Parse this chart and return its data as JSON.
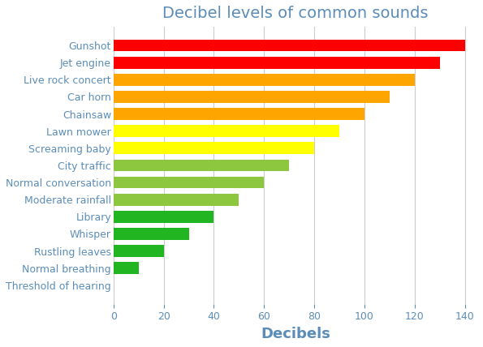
{
  "title": "Decibel levels of common sounds",
  "xlabel": "Decibels",
  "categories": [
    "Threshold of hearing",
    "Normal breathing",
    "Rustling leaves",
    "Whisper",
    "Library",
    "Moderate rainfall",
    "Normal conversation",
    "City traffic",
    "Screaming baby",
    "Lawn mower",
    "Chainsaw",
    "Car horn",
    "Live rock concert",
    "Jet engine",
    "Gunshot"
  ],
  "values": [
    0,
    10,
    20,
    30,
    40,
    50,
    60,
    70,
    80,
    90,
    100,
    110,
    120,
    130,
    140
  ],
  "colors": [
    "#22b522",
    "#22b522",
    "#22b522",
    "#22b522",
    "#22b522",
    "#8dc63f",
    "#8dc63f",
    "#8dc63f",
    "#ffff00",
    "#ffff00",
    "#ffa500",
    "#ffa500",
    "#ffa500",
    "#ff0000",
    "#ff0000"
  ],
  "xlim": [
    0,
    145
  ],
  "title_fontsize": 14,
  "label_fontsize": 9,
  "xlabel_fontsize": 13,
  "background_color": "#ffffff",
  "grid_color": "#cccccc",
  "text_color": "#5b8db8"
}
